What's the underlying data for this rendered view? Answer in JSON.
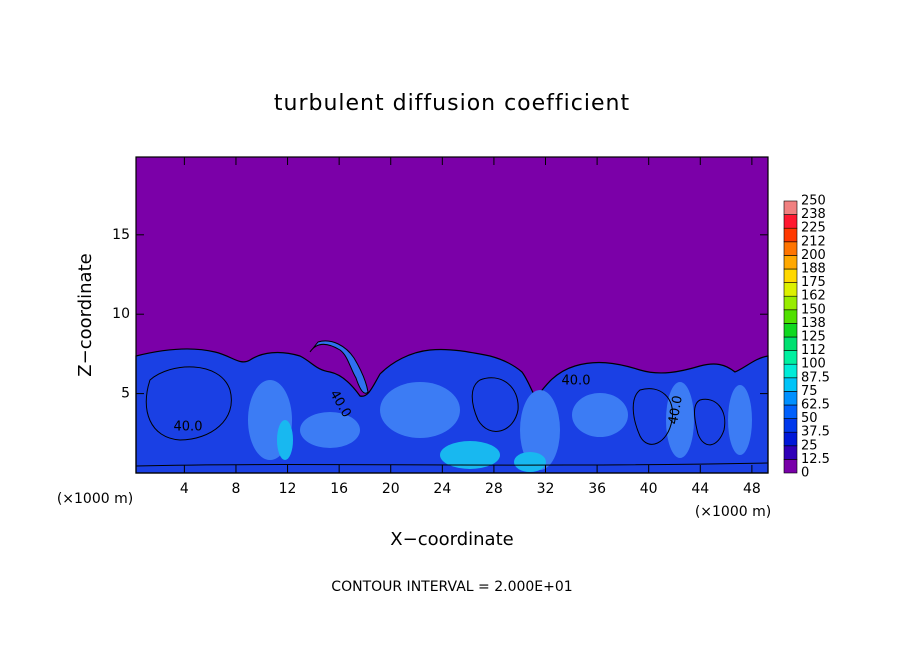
{
  "chart_data": {
    "type": "contour",
    "title": "turbulent diffusion coefficient",
    "xlabel": "X−coordinate",
    "ylabel": "Z−coordinate",
    "x_unit_label": "(×1000 m)",
    "y_unit_label": "(×1000 m)",
    "footer": "CONTOUR INTERVAL = 2.000E+01",
    "contour_labels": [
      "40.0",
      "40.0",
      "40.0",
      "40.0"
    ],
    "xlim": [
      0.25,
      49.25
    ],
    "xticks": [
      4,
      8,
      12,
      16,
      20,
      24,
      28,
      32,
      36,
      40,
      44,
      48
    ],
    "ylim": [
      0,
      19.9
    ],
    "yticks": [
      5,
      10,
      15
    ],
    "colorbar": {
      "levels": [
        0,
        12.5,
        25,
        37.5,
        50,
        62.5,
        75,
        87.5,
        100,
        112,
        125,
        138,
        150,
        162,
        175,
        188,
        200,
        212,
        225,
        238,
        250
      ],
      "colors": [
        "#7800a8",
        "#3000b8",
        "#0018d8",
        "#0038ec",
        "#0060fc",
        "#0090ff",
        "#00c4f8",
        "#00ecd8",
        "#00f0a0",
        "#00e070",
        "#10d820",
        "#50e000",
        "#98ec00",
        "#dcf000",
        "#ffd800",
        "#ffa800",
        "#ff7400",
        "#ff3800",
        "#ff1830",
        "#f08080"
      ]
    }
  }
}
